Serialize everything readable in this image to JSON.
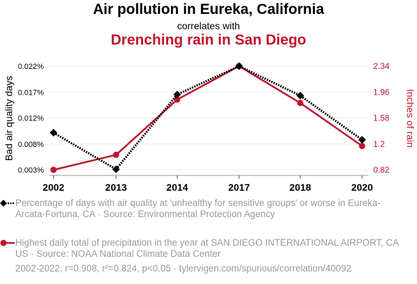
{
  "header": {
    "title": "Air pollution in Eureka, California",
    "subtitle": "correlates with",
    "title2": "Drenching rain in San Diego"
  },
  "colors": {
    "series1": "#000000",
    "series2": "#c0142c",
    "legend_text": "#999999",
    "grid": "#eeeeee"
  },
  "chart_data": {
    "type": "line",
    "title": "Air pollution in Eureka, California correlates with Drenching rain in San Diego",
    "categories": [
      "2002",
      "2013",
      "2014",
      "2017",
      "2018",
      "2020"
    ],
    "y_left": {
      "label": "Bad air quality days",
      "ticks": [
        "0.022%",
        "0.017%",
        "0.012%",
        "0.008%",
        "0.003%"
      ],
      "range": [
        0.003,
        0.022
      ]
    },
    "y_right": {
      "label": "Inches of rain",
      "ticks": [
        "2.34",
        "1.96",
        "1.58",
        "1.2",
        "0.82"
      ],
      "range": [
        0.82,
        2.34
      ]
    },
    "series": [
      {
        "name": "Percentage of days with air quality at 'unhealthy for sensitive groups' or worse in Eureka-Arcata-Fortuna, CA",
        "axis": "left",
        "style": "dotted-black-diamond",
        "values": [
          0.0098,
          0.0031,
          0.0168,
          0.022,
          0.0166,
          0.0085
        ]
      },
      {
        "name": "Highest daily total of precipitation in the year at SAN DIEGO INTERNATIONAL AIRPORT, CA US",
        "axis": "right",
        "style": "solid-red-circle",
        "values": [
          0.82,
          1.04,
          1.85,
          2.34,
          1.8,
          1.17
        ]
      }
    ],
    "grid": true,
    "legend_position": "bottom"
  },
  "legend": {
    "item1": "Percentage of days with air quality at 'unhealthy for sensitive groups' or worse in Eureka-Arcata-Fortuna, CA · Source: Environmental Protection Agency",
    "item2": "Highest daily total of precipitation in the year at SAN DIEGO INTERNATIONAL AIRPORT, CA US · Source: NOAA National Climate Data Center"
  },
  "footer": "2002-2022, r=0.908, r²=0.824, p<0.05 · tylervigen.com/spurious/correlation/40092"
}
